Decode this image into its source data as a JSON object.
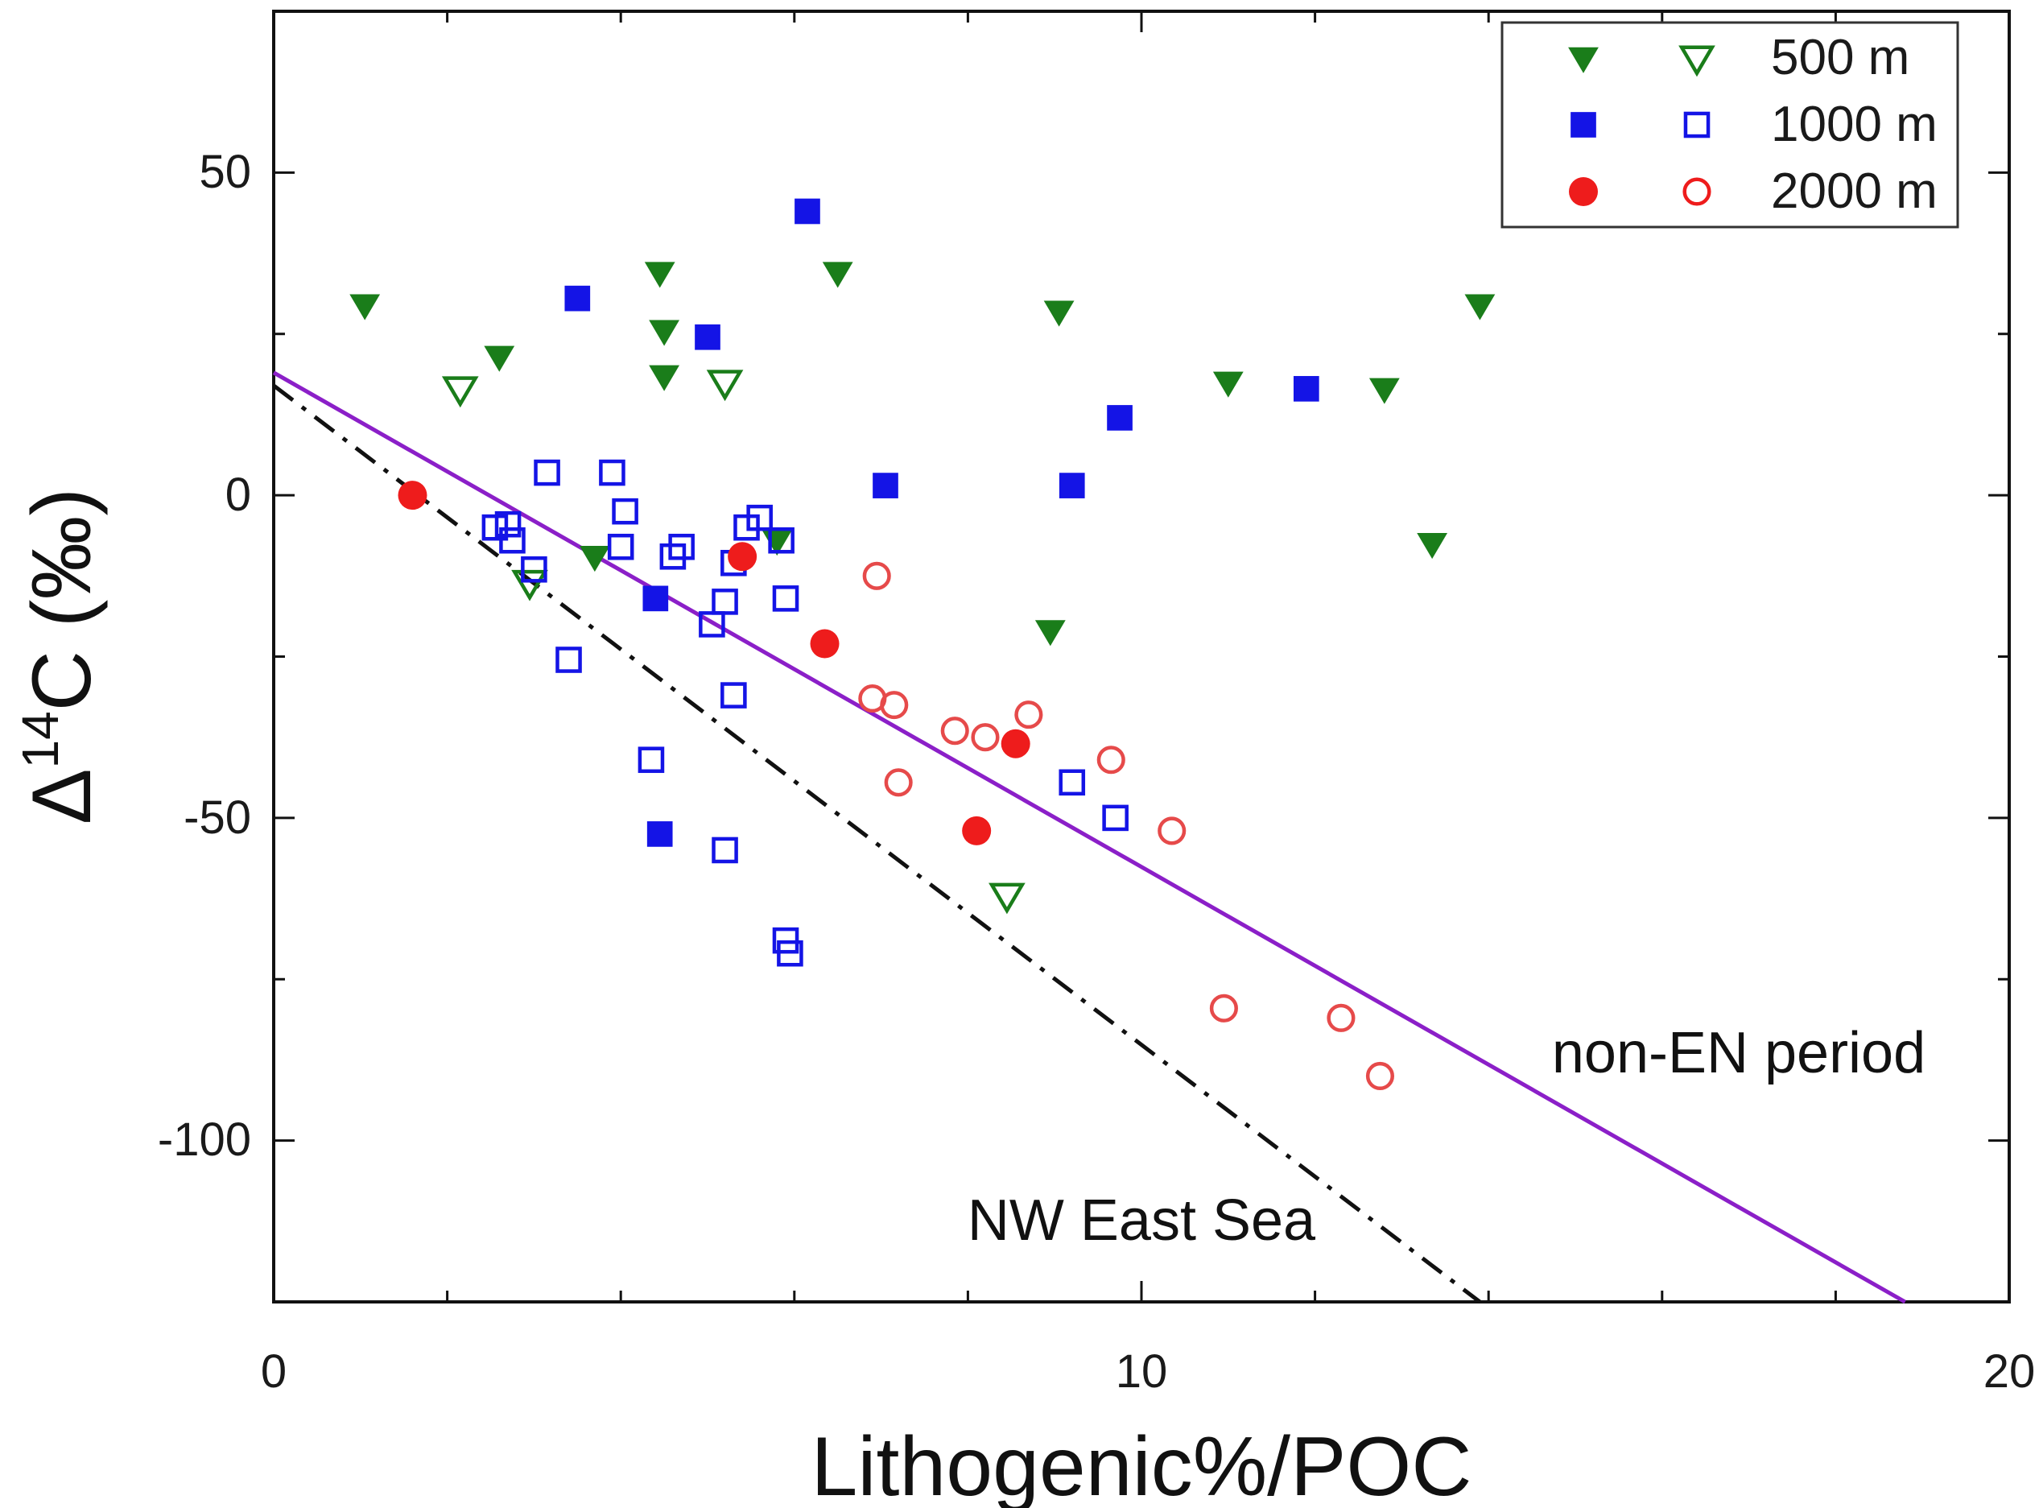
{
  "chart_data": {
    "type": "scatter",
    "title": "",
    "xlabel": "Lithogenic%/POC",
    "ylabel_base": "Δ",
    "ylabel_sup": "14",
    "ylabel_rest": "C (‰)",
    "xlim": [
      0,
      20
    ],
    "ylim": [
      -125,
      75
    ],
    "x_ticks": [
      0,
      10,
      20
    ],
    "x_tick_labels": [
      "0",
      "10",
      "20"
    ],
    "y_ticks": [
      50,
      0,
      -50,
      -100
    ],
    "y_tick_labels": [
      "50",
      "0",
      "-50",
      "-100"
    ],
    "grid": false,
    "legend_position": "top-right",
    "legend": [
      {
        "label": "500 m",
        "filled_marker": "triangle-down",
        "open_marker": "triangle-down-open",
        "color": "#1a7d1a"
      },
      {
        "label": "1000 m",
        "filled_marker": "square",
        "open_marker": "square-open",
        "color": "#1414e6"
      },
      {
        "label": "2000 m",
        "filled_marker": "circle",
        "open_marker": "circle-open",
        "color": "#ee1c1c"
      }
    ],
    "series": [
      {
        "name": "500 m filled",
        "marker": "triangle-down",
        "filled": true,
        "color": "#1a7d1a",
        "x": [
          1.05,
          2.6,
          4.45,
          4.5,
          4.5,
          6.5,
          3.7,
          5.8,
          9.05,
          8.95,
          11.0,
          12.8,
          13.35,
          13.9
        ],
        "y": [
          29.5,
          21.5,
          34.5,
          25.5,
          18.5,
          34.5,
          -9.5,
          -7,
          28.5,
          -21,
          17.5,
          16.5,
          -7.5,
          29.5
        ]
      },
      {
        "name": "500 m open",
        "marker": "triangle-down-open",
        "filled": false,
        "color": "#1a7d1a",
        "x": [
          2.15,
          5.2,
          2.95,
          8.45
        ],
        "y": [
          16.5,
          17.5,
          -13.5,
          -62
        ]
      },
      {
        "name": "1000 m filled",
        "marker": "square",
        "filled": true,
        "color": "#1414e6",
        "x": [
          3.5,
          6.15,
          5.0,
          7.05,
          9.2,
          9.75,
          11.9,
          4.4,
          4.45
        ],
        "y": [
          30.5,
          44,
          24.5,
          1.5,
          1.5,
          12,
          16.5,
          -16,
          -52.5
        ]
      },
      {
        "name": "1000 m open",
        "marker": "square-open",
        "filled": false,
        "color": "#1414e6",
        "x": [
          3.15,
          3.9,
          2.55,
          2.7,
          2.75,
          4.05,
          3.0,
          4.0,
          4.6,
          4.7,
          5.3,
          5.45,
          5.6,
          5.85,
          5.9,
          5.2,
          5.05,
          3.4,
          5.3,
          4.35,
          5.2,
          5.9,
          5.95,
          9.2,
          9.7
        ],
        "y": [
          3.5,
          3.5,
          -5,
          -4.5,
          -7,
          -2.5,
          -11.5,
          -8,
          -9.5,
          -8,
          -10.5,
          -5,
          -3.5,
          -7,
          -16,
          -16.5,
          -20,
          -25.5,
          -31,
          -41,
          -55,
          -69,
          -71,
          -44.5,
          -50
        ]
      },
      {
        "name": "2000 m filled",
        "marker": "circle",
        "filled": true,
        "color": "#ee1c1c",
        "x": [
          1.6,
          5.4,
          6.35,
          8.55,
          8.1
        ],
        "y": [
          0,
          -9.5,
          -23,
          -38.5,
          -52
        ]
      },
      {
        "name": "2000 m open",
        "marker": "circle-open",
        "filled": false,
        "color": "#e64a4a",
        "x": [
          6.95,
          6.9,
          7.15,
          7.2,
          7.85,
          8.2,
          8.7,
          9.65,
          10.35,
          10.95,
          12.3,
          12.75
        ],
        "y": [
          -12.5,
          -31.5,
          -32.5,
          -44.5,
          -36.5,
          -37.5,
          -34,
          -41,
          -52,
          -79.5,
          -81,
          -90
        ]
      }
    ],
    "lines": [
      {
        "name": "non-EN period",
        "style": "solid",
        "color": "#8b1fc8",
        "x": [
          0,
          18.8
        ],
        "y": [
          19,
          -125
        ]
      },
      {
        "name": "NW East Sea",
        "style": "dash-dot",
        "color": "#111111",
        "x": [
          0,
          13.9
        ],
        "y": [
          17,
          -125
        ]
      }
    ],
    "annotations": [
      {
        "text": "non-EN period",
        "x": 16.9,
        "y": -87
      },
      {
        "text": "NW East Sea",
        "x": 10.0,
        "y": -113
      }
    ]
  }
}
